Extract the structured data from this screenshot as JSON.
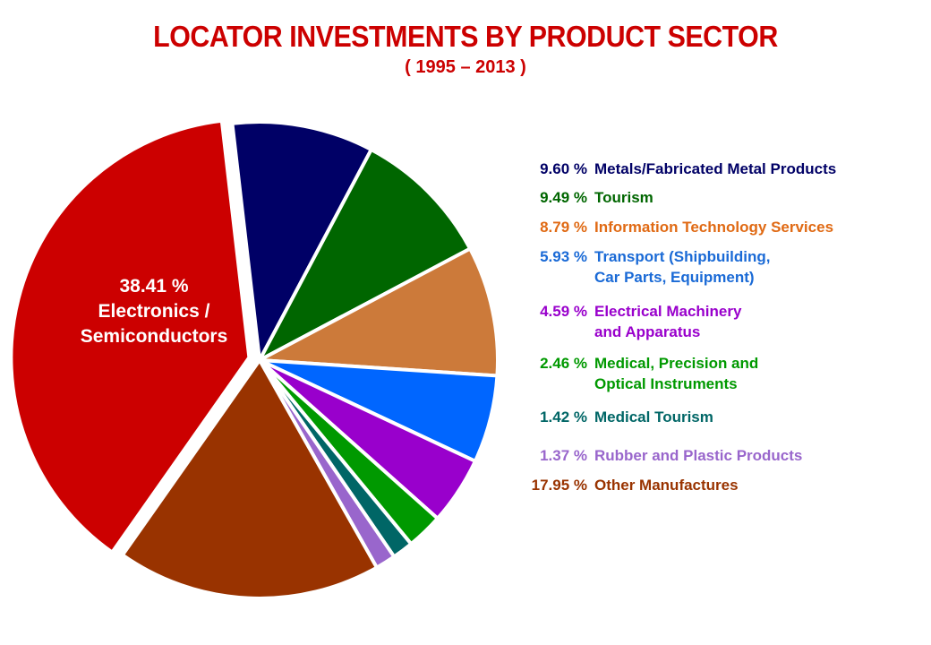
{
  "chart_data": {
    "type": "pie",
    "title": "LOCATOR INVESTMENTS BY PRODUCT SECTOR",
    "subtitle": "( 1995 – 2013 )",
    "slices": [
      {
        "value": 38.41,
        "pct_label": "38.41 %",
        "label": "Electronics / Semiconductors",
        "color": "#cc0000",
        "text_color": "#ffffff"
      },
      {
        "value": 9.6,
        "pct_label": "9.60 %",
        "label": "Metals/Fabricated Metal Products",
        "color": "#000066",
        "text_color": "#000066"
      },
      {
        "value": 9.49,
        "pct_label": "9.49 %",
        "label": "Tourism",
        "color": "#006600",
        "text_color": "#006600"
      },
      {
        "value": 8.79,
        "pct_label": "8.79 %",
        "label": "Information Technology Services",
        "color": "#cc7a3a",
        "text_color": "#e06a14"
      },
      {
        "value": 5.93,
        "pct_label": "5.93 %",
        "label": "Transport  (Shipbuilding,\nCar Parts, Equipment)",
        "color": "#0066ff",
        "text_color": "#1a6ad6"
      },
      {
        "value": 4.59,
        "pct_label": "4.59 %",
        "label": "Electrical Machinery\nand Apparatus",
        "color": "#9900cc",
        "text_color": "#9900cc"
      },
      {
        "value": 2.46,
        "pct_label": "2.46 %",
        "label": "Medical, Precision and\nOptical Instruments",
        "color": "#009900",
        "text_color": "#009900"
      },
      {
        "value": 1.42,
        "pct_label": "1.42 %",
        "label": "Medical Tourism",
        "color": "#006666",
        "text_color": "#006666"
      },
      {
        "value": 1.37,
        "pct_label": "1.37 %",
        "label": "Rubber and Plastic Products",
        "color": "#9966cc",
        "text_color": "#9966cc"
      },
      {
        "value": 17.95,
        "pct_label": "17.95 %",
        "label": "Other Manufactures",
        "color": "#993300",
        "text_color": "#993300"
      }
    ],
    "pie_label": {
      "pct": "38.41 %",
      "line1": "Electronics /",
      "line2": "Semiconductors"
    }
  }
}
